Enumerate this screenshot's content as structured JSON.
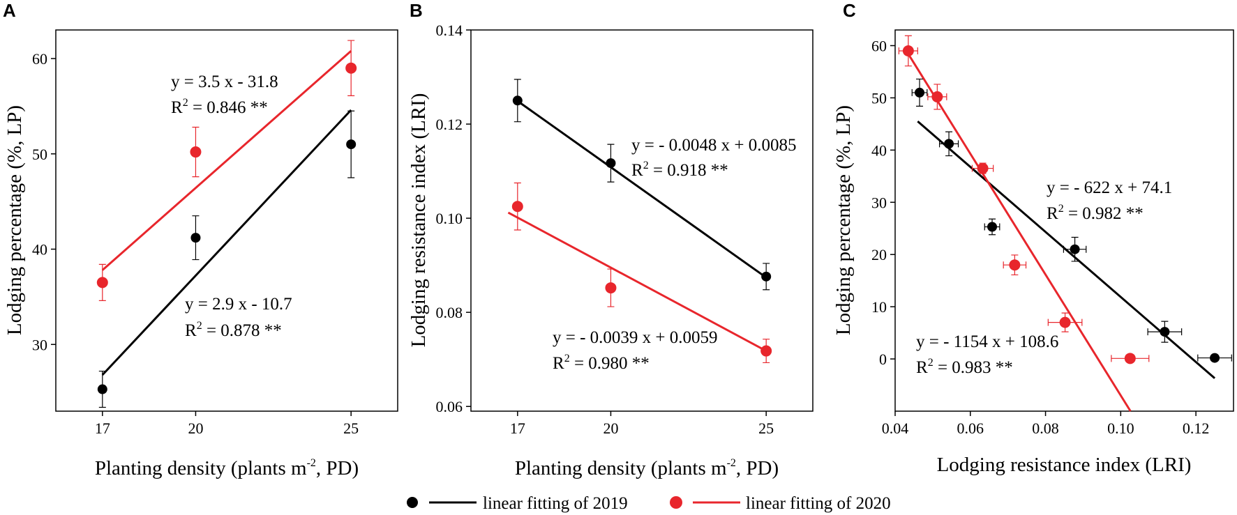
{
  "legend": {
    "label_2019": "linear fitting of 2019",
    "label_2020": "linear fitting of 2020",
    "color_2019": "#000000",
    "color_2020": "#e8262c"
  },
  "chart_data": [
    {
      "panel": "A",
      "type": "scatter",
      "xlabel": "Planting density (plants m",
      "xlabel_sup": "-2",
      "xlabel_end": ", PD)",
      "ylabel": "Lodging percentage (%, LP)",
      "xlim": [
        15.5,
        26.5
      ],
      "ylim": [
        23,
        63
      ],
      "xticks": [
        17,
        20,
        25
      ],
      "xtick_labels": [
        "17",
        "20",
        "25"
      ],
      "yticks": [
        30,
        40,
        50,
        60
      ],
      "ytick_labels": [
        "30",
        "40",
        "50",
        "60"
      ],
      "series": [
        {
          "name": "2019",
          "color": "#000000",
          "points": [
            {
              "x": 17,
              "y": 25.3,
              "yerr": 1.9,
              "xerr": 0
            },
            {
              "x": 20,
              "y": 41.2,
              "yerr": 2.3,
              "xerr": 0
            },
            {
              "x": 25,
              "y": 51.0,
              "yerr": 3.5,
              "xerr": 0
            }
          ],
          "fit": {
            "x": [
              17,
              25
            ],
            "y": [
              26.8,
              54.6
            ]
          },
          "equation": "y = 2.9 x - 10.7",
          "r2_prefix": "R",
          "r2_sup": "2",
          "r2_value": " = 0.878 **"
        },
        {
          "name": "2020",
          "color": "#e8262c",
          "points": [
            {
              "x": 17,
              "y": 36.5,
              "yerr": 1.9,
              "xerr": 0
            },
            {
              "x": 20,
              "y": 50.2,
              "yerr": 2.6,
              "xerr": 0
            },
            {
              "x": 25,
              "y": 59.0,
              "yerr": 2.9,
              "xerr": 0
            }
          ],
          "fit": {
            "x": [
              17,
              25
            ],
            "y": [
              37.8,
              60.8
            ]
          },
          "equation": "y = 3.5 x - 31.8",
          "r2_prefix": "R",
          "r2_sup": "2",
          "r2_value": " = 0.846 **"
        }
      ]
    },
    {
      "panel": "B",
      "type": "scatter",
      "xlabel": "Planting density (plants m",
      "xlabel_sup": "-2",
      "xlabel_end": ", PD)",
      "ylabel": "Lodging resistance index (LRI)",
      "xlim": [
        15.5,
        26.5
      ],
      "ylim": [
        0.059,
        0.14
      ],
      "xticks": [
        17,
        20,
        25
      ],
      "xtick_labels": [
        "17",
        "20",
        "25"
      ],
      "yticks": [
        0.06,
        0.08,
        0.1,
        0.12,
        0.14
      ],
      "ytick_labels": [
        "0.06",
        "0.08",
        "0.10",
        "0.12",
        "0.14"
      ],
      "series": [
        {
          "name": "2019",
          "color": "#000000",
          "points": [
            {
              "x": 17,
              "y": 0.125,
              "yerr": 0.0045,
              "xerr": 0
            },
            {
              "x": 20,
              "y": 0.1117,
              "yerr": 0.004,
              "xerr": 0
            },
            {
              "x": 25,
              "y": 0.0876,
              "yerr": 0.0028,
              "xerr": 0
            }
          ],
          "fit": {
            "x": [
              17,
              25
            ],
            "y": [
              0.1249,
              0.0874
            ]
          },
          "equation": "y = - 0.0048 x + 0.0085",
          "r2_prefix": "R",
          "r2_sup": "2",
          "r2_value": " = 0.918 **"
        },
        {
          "name": "2020",
          "color": "#e8262c",
          "points": [
            {
              "x": 17,
              "y": 0.1025,
              "yerr": 0.005,
              "xerr": 0
            },
            {
              "x": 20,
              "y": 0.0852,
              "yerr": 0.004,
              "xerr": 0
            },
            {
              "x": 25,
              "y": 0.0718,
              "yerr": 0.0025,
              "xerr": 0
            }
          ],
          "fit": {
            "x": [
              16.7,
              25
            ],
            "y": [
              0.1012,
              0.0718
            ]
          },
          "equation": "y = - 0.0039 x + 0.0059",
          "r2_prefix": "R",
          "r2_sup": "2",
          "r2_value": " = 0.980 **"
        }
      ]
    },
    {
      "panel": "C",
      "type": "scatter",
      "xlabel": "Lodging resistance index (LRI)",
      "xlabel_sup": "",
      "xlabel_end": "",
      "ylabel": "Lodging percentage (%, LP)",
      "xlim": [
        0.04,
        0.13
      ],
      "ylim": [
        -10,
        63
      ],
      "xticks": [
        0.04,
        0.06,
        0.08,
        0.1,
        0.12
      ],
      "xtick_labels": [
        "0.04",
        "0.06",
        "0.08",
        "0.10",
        "0.12"
      ],
      "yticks": [
        0,
        10,
        20,
        30,
        40,
        50,
        60
      ],
      "ytick_labels": [
        "0",
        "10",
        "20",
        "30",
        "40",
        "50",
        "60"
      ],
      "series": [
        {
          "name": "2019",
          "color": "#000000",
          "points": [
            {
              "x": 0.0465,
              "y": 51.0,
              "yerr": 2.6,
              "xerr": 0.002
            },
            {
              "x": 0.0543,
              "y": 41.2,
              "yerr": 2.3,
              "xerr": 0.0025
            },
            {
              "x": 0.0658,
              "y": 25.3,
              "yerr": 1.5,
              "xerr": 0.002
            },
            {
              "x": 0.0878,
              "y": 21.0,
              "yerr": 2.3,
              "xerr": 0.003
            },
            {
              "x": 0.1117,
              "y": 5.2,
              "yerr": 2.0,
              "xerr": 0.0045
            },
            {
              "x": 0.125,
              "y": 0.2,
              "yerr": 0,
              "xerr": 0.0045
            }
          ],
          "fit": {
            "x": [
              0.046,
              0.125
            ],
            "y": [
              45.5,
              -3.7
            ]
          },
          "equation": "y = - 622 x + 74.1",
          "r2_prefix": "R",
          "r2_sup": "2",
          "r2_value": " = 0.982 **"
        },
        {
          "name": "2020",
          "color": "#e8262c",
          "points": [
            {
              "x": 0.0435,
              "y": 59.0,
              "yerr": 2.9,
              "xerr": 0.0025
            },
            {
              "x": 0.0512,
              "y": 50.2,
              "yerr": 2.4,
              "xerr": 0.0025
            },
            {
              "x": 0.0633,
              "y": 36.5,
              "yerr": 1.0,
              "xerr": 0.0028
            },
            {
              "x": 0.0718,
              "y": 18.0,
              "yerr": 1.9,
              "xerr": 0.003
            },
            {
              "x": 0.0852,
              "y": 7.0,
              "yerr": 1.8,
              "xerr": 0.0045
            },
            {
              "x": 0.1025,
              "y": 0.1,
              "yerr": 0,
              "xerr": 0.005
            }
          ],
          "fit": {
            "x": [
              0.0435,
              0.1026
            ],
            "y": [
              58.4,
              -10
            ]
          },
          "equation": "y = - 1154 x + 108.6",
          "r2_prefix": "R",
          "r2_sup": "2",
          "r2_value": " = 0.983 **"
        }
      ]
    }
  ]
}
